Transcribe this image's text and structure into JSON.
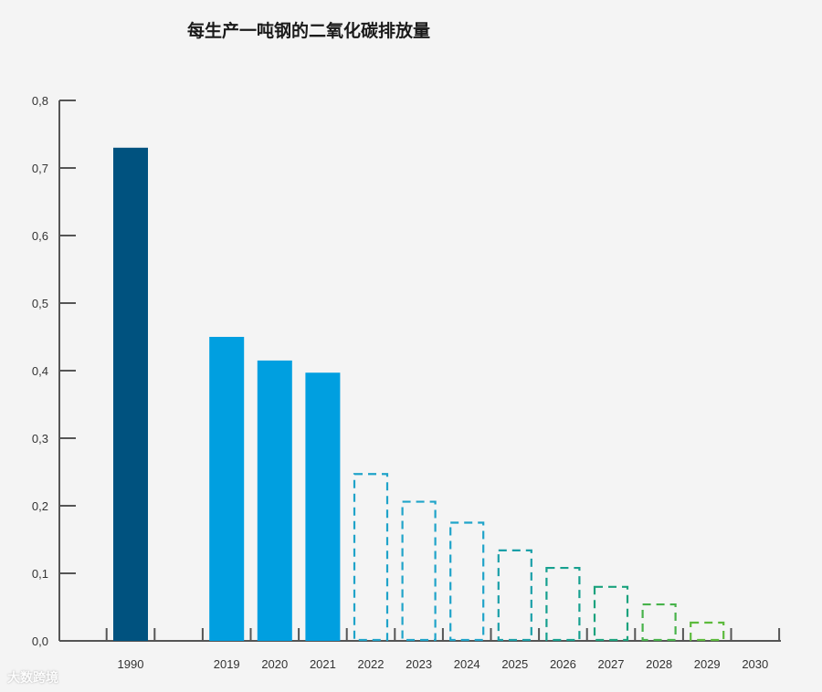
{
  "chart_data": {
    "type": "bar",
    "title": "每生产一吨钢的二氧化碳排放量",
    "xlabel": "",
    "ylabel": "",
    "ylim": [
      0,
      0.8
    ],
    "yticks": [
      "0,0",
      "0,1",
      "0,2",
      "0,3",
      "0,4",
      "0,5",
      "0,6",
      "0,7",
      "0,8"
    ],
    "categories": [
      "1990",
      "",
      "2019",
      "2020",
      "2021",
      "2022",
      "2023",
      "2024",
      "2025",
      "2026",
      "2027",
      "2028",
      "2029",
      "2030"
    ],
    "values": [
      0.73,
      null,
      0.45,
      0.415,
      0.397,
      0.247,
      0.206,
      0.175,
      0.134,
      0.108,
      0.08,
      0.054,
      0.027,
      null
    ],
    "styles": [
      "solid",
      "none",
      "solid",
      "solid",
      "solid",
      "dashed",
      "dashed",
      "dashed",
      "dashed",
      "dashed",
      "dashed",
      "dashed",
      "dashed",
      "none"
    ],
    "colors": [
      "#00527f",
      "",
      "#009fe0",
      "#009fe0",
      "#009fe0",
      "#1fa3c9",
      "#1fa3c9",
      "#1fa3c9",
      "#1a9fa8",
      "#16a08f",
      "#1ba27d",
      "#47b24a",
      "#5cba3c",
      ""
    ],
    "grid": false,
    "legend": "none"
  },
  "watermark": "大数跨境"
}
